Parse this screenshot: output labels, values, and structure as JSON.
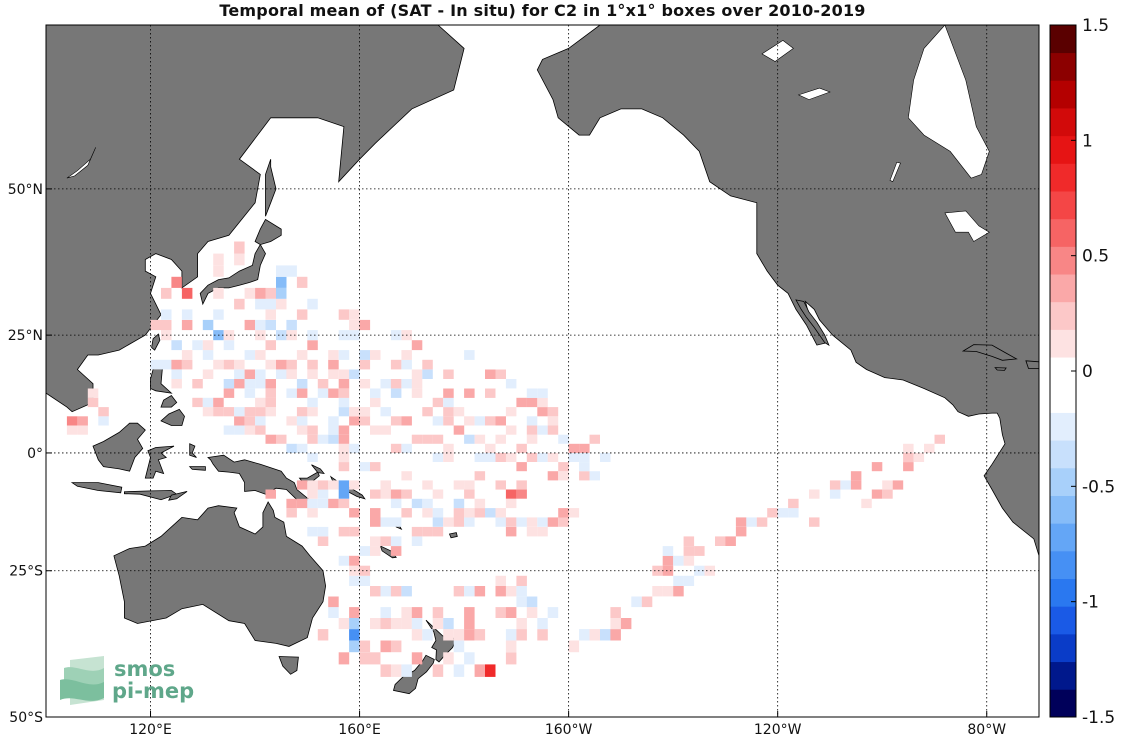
{
  "title": "Temporal mean of (SAT - In situ) for C2 in 1°x1° boxes over 2010-2019",
  "map": {
    "lon_range": [
      100,
      290
    ],
    "lat_range": [
      -50,
      68
    ],
    "x_ticks": [
      {
        "lon": 120,
        "label": "120°E"
      },
      {
        "lon": 160,
        "label": "160°E"
      },
      {
        "lon": 200,
        "label": "160°W"
      },
      {
        "lon": 240,
        "label": "120°W"
      },
      {
        "lon": 280,
        "label": "80°W"
      }
    ],
    "y_ticks": [
      {
        "lat": 50,
        "label": "50°N"
      },
      {
        "lat": 25,
        "label": "25°N"
      },
      {
        "lat": 0,
        "label": "0°"
      },
      {
        "lat": -25,
        "label": "25°S"
      },
      {
        "lat": -50,
        "label": "50°S"
      }
    ],
    "land_color": "#777777",
    "ocean_color": "#ffffff"
  },
  "colorbar": {
    "min": -1.5,
    "max": 1.5,
    "ticks": [
      {
        "value": 1.5,
        "label": "1.5"
      },
      {
        "value": 1,
        "label": "1"
      },
      {
        "value": 0.5,
        "label": "0.5"
      },
      {
        "value": 0,
        "label": "0"
      },
      {
        "value": -0.5,
        "label": "-0.5"
      },
      {
        "value": -1,
        "label": "-1"
      },
      {
        "value": -1.5,
        "label": "-1.5"
      }
    ],
    "colors": [
      "#00005a",
      "#00188c",
      "#0a3cc8",
      "#1a5ae6",
      "#2a78f0",
      "#4690f4",
      "#64a6f6",
      "#86bcf8",
      "#a8d0fa",
      "#c8e0fc",
      "#e2eefd",
      "#ffffff",
      "#ffffff",
      "#fde2e2",
      "#fcc8c8",
      "#faa8a8",
      "#f88686",
      "#f66464",
      "#f44646",
      "#f02a2a",
      "#e61414",
      "#d20a0a",
      "#b40000",
      "#8c0000",
      "#5a0000"
    ]
  },
  "logo": {
    "line1": "smos",
    "line2": "pi-mep"
  }
}
